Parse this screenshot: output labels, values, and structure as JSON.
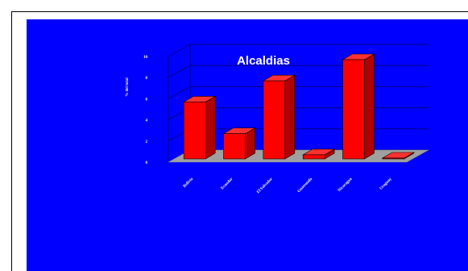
{
  "chart_data": {
    "type": "bar",
    "title": "Alcaldias",
    "ylabel": "% del total",
    "xlabel": "",
    "categories": [
      "Bolivia",
      "Ecuador",
      "El Salvador",
      "Guatemala",
      "Nicaragua",
      "Uruguay"
    ],
    "series": [
      {
        "values": [
          6,
          3,
          8,
          1,
          10,
          0
        ]
      }
    ],
    "ylim": [
      0,
      10
    ],
    "yticks": [
      "0",
      "2",
      "4",
      "6",
      "8",
      "10"
    ],
    "grid": true,
    "legend": "none",
    "colors": {
      "background": "#0000ff",
      "bar_front": "#ff0000",
      "bar_side": "#b00000",
      "bar_top": "#ff3030",
      "floor": "#a0a0a0",
      "text": "#ffffff"
    }
  }
}
